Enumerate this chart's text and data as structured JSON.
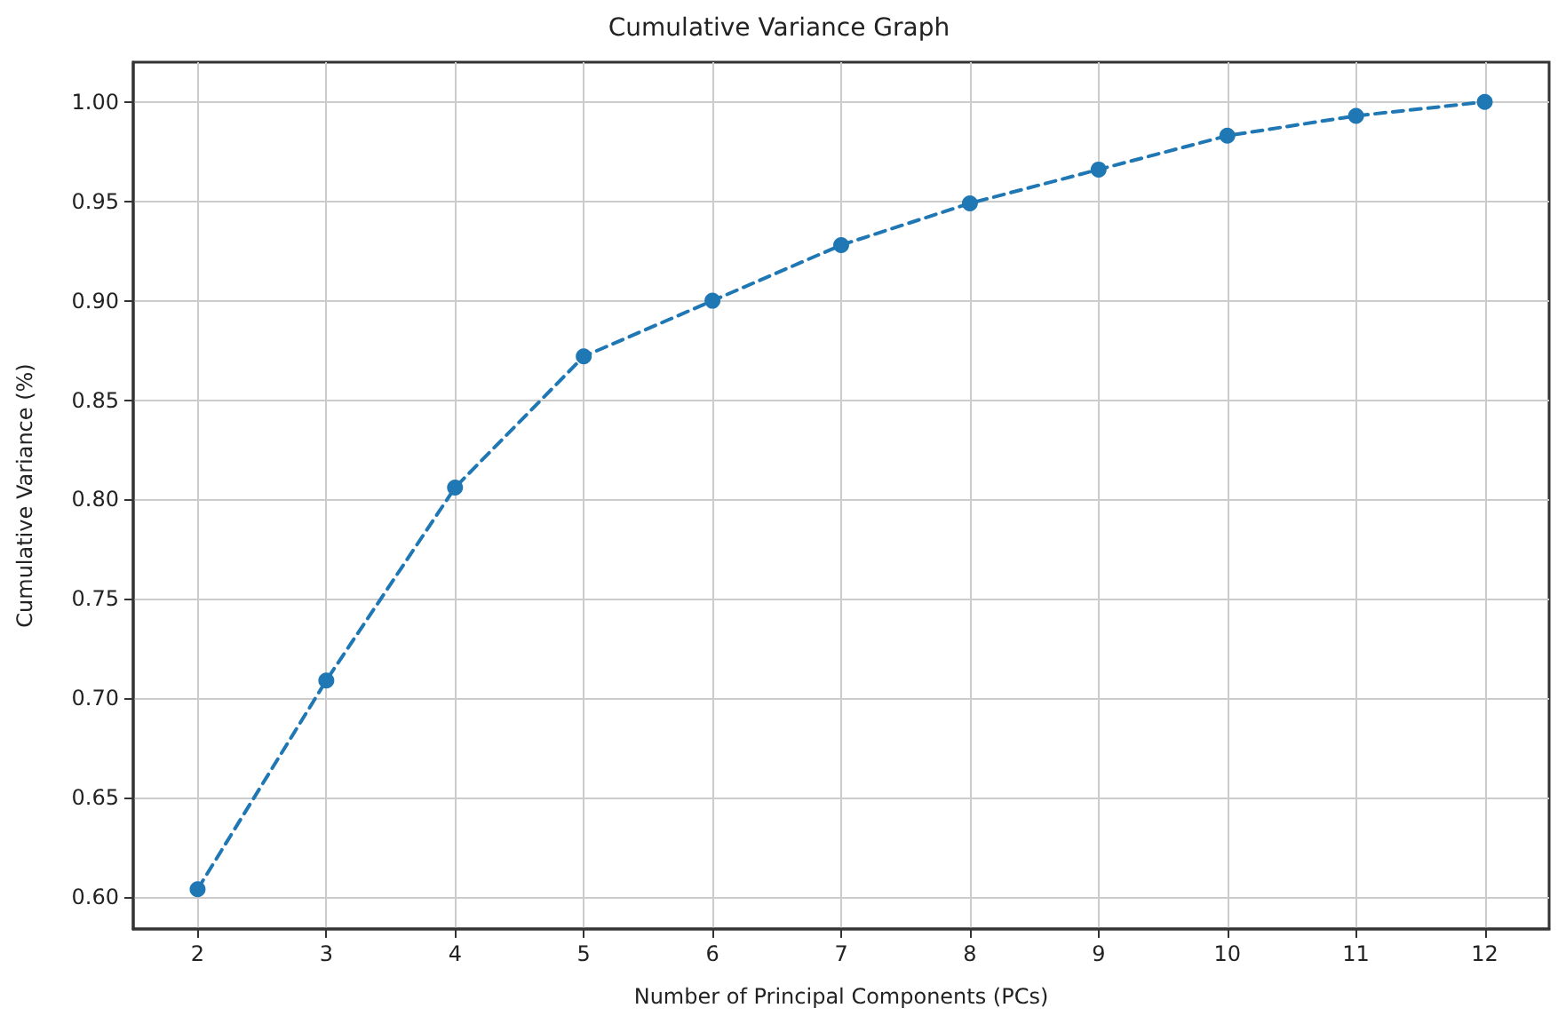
{
  "chart_data": {
    "type": "line",
    "title": "Cumulative Variance Graph",
    "xlabel": "Number of Principal Components (PCs)",
    "ylabel": "Cumulative Variance (%)",
    "x": [
      2,
      3,
      4,
      5,
      6,
      7,
      8,
      9,
      10,
      11,
      12
    ],
    "series": [
      {
        "color": "#1f77b4",
        "values": [
          0.604,
          0.709,
          0.806,
          0.872,
          0.9,
          0.928,
          0.949,
          0.966,
          0.983,
          0.993,
          1.0
        ]
      }
    ],
    "xlim": [
      1.5,
      12.5
    ],
    "xticks": [
      2,
      3,
      4,
      5,
      6,
      7,
      8,
      9,
      10,
      11,
      12
    ],
    "ylim": [
      0.584,
      1.02
    ],
    "yticks": [
      {
        "value": 0.6,
        "label": "0.60"
      },
      {
        "value": 0.65,
        "label": "0.65"
      },
      {
        "value": 0.7,
        "label": "0.70"
      },
      {
        "value": 0.75,
        "label": "0.75"
      },
      {
        "value": 0.8,
        "label": "0.80"
      },
      {
        "value": 0.85,
        "label": "0.85"
      },
      {
        "value": 0.9,
        "label": "0.90"
      },
      {
        "value": 0.95,
        "label": "0.95"
      },
      {
        "value": 1.0,
        "label": "1.00"
      }
    ],
    "grid": true,
    "marker": "circle",
    "line_style": "dashed"
  }
}
